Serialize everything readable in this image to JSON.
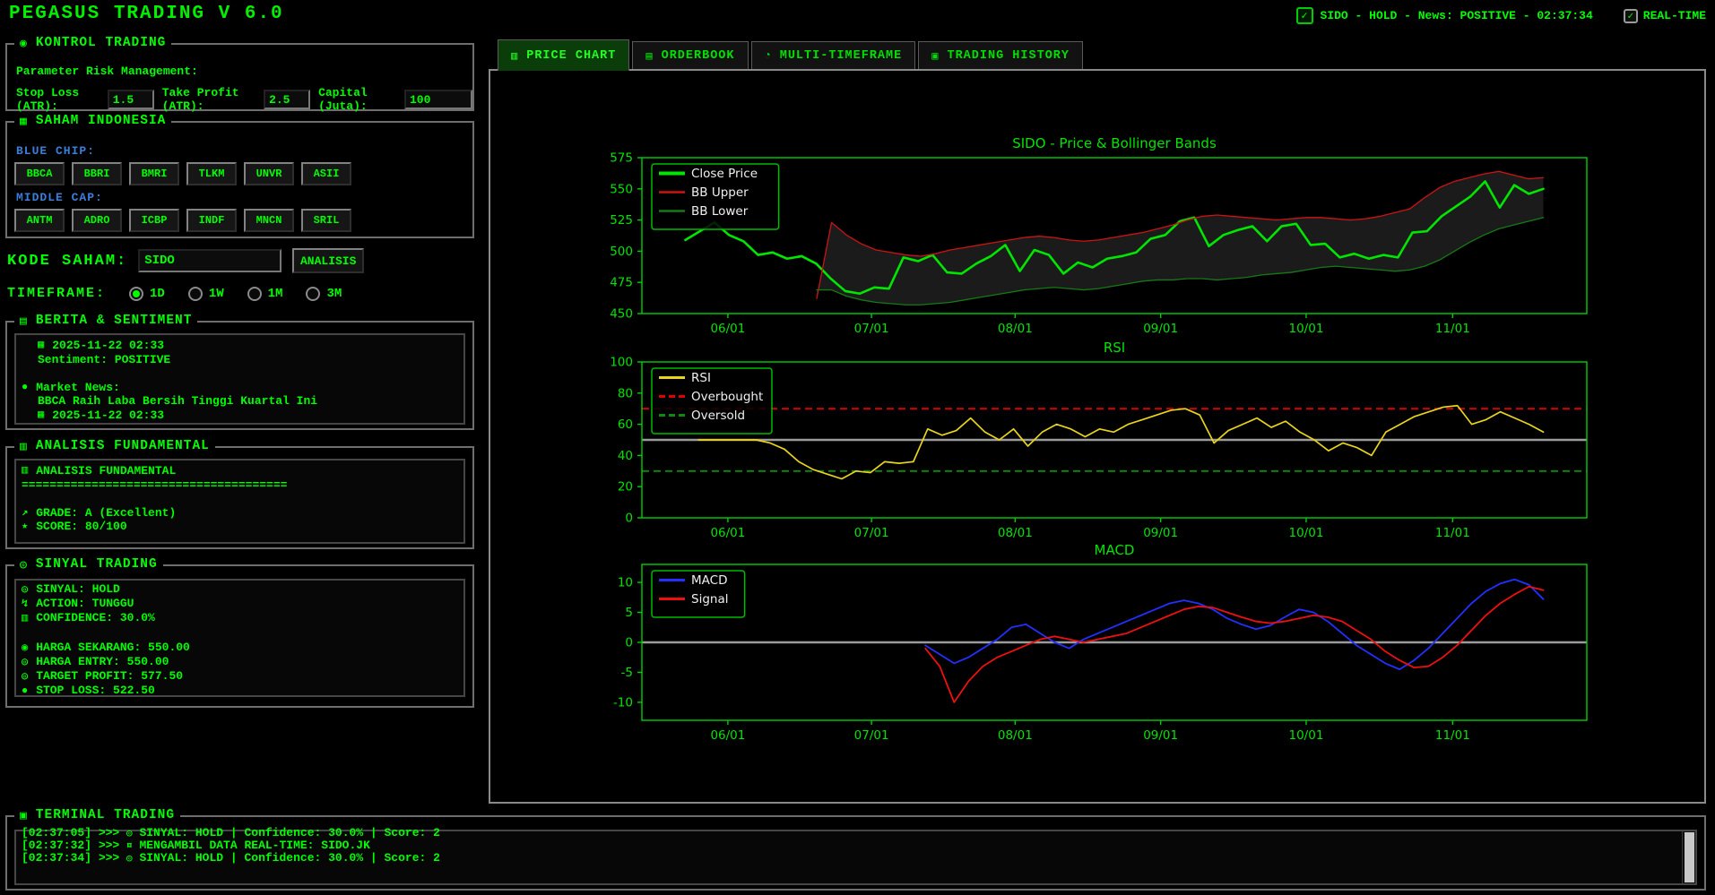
{
  "app": {
    "title": "PEGASUS TRADING V 6.0"
  },
  "statusbar": {
    "status": "SIDO - HOLD - News: POSITIVE - 02:37:34",
    "status_check": "checked",
    "realtime_label": "REAL-TIME",
    "realtime_checked": true
  },
  "colors": {
    "background": "#000000",
    "primary_green": "#00ff00",
    "label_blue": "#3b7dd8",
    "rsi_yellow": "#e8d41c",
    "macd_blue": "#2330ff",
    "signal_red": "#ee1010",
    "bb_red": "#cc1414",
    "bb_green": "#157a15",
    "band_gray": "#1b1b1b"
  },
  "sidebar": {
    "kontrol": {
      "title": "KONTROL TRADING",
      "subtitle": "Parameter Risk Management:",
      "fields": [
        {
          "label": "Stop Loss (ATR):",
          "value": "1.5"
        },
        {
          "label": "Take Profit (ATR):",
          "value": "2.5"
        },
        {
          "label": "Capital (Juta):",
          "value": "100"
        }
      ]
    },
    "saham": {
      "title": "SAHAM INDONESIA",
      "groups": [
        {
          "label": "BLUE CHIP:",
          "tickers": [
            "BBCA",
            "BBRI",
            "BMRI",
            "TLKM",
            "UNVR",
            "ASII"
          ]
        },
        {
          "label": "MIDDLE CAP:",
          "tickers": [
            "ANTM",
            "ADRO",
            "ICBP",
            "INDF",
            "MNCN",
            "SRIL"
          ]
        }
      ]
    },
    "kode": {
      "label": "KODE SAHAM:",
      "value": "SIDO",
      "button": "ANALISIS"
    },
    "timeframe": {
      "label": "TIMEFRAME:",
      "options": [
        {
          "label": "1D",
          "selected": true
        },
        {
          "label": "1W",
          "selected": false
        },
        {
          "label": "1M",
          "selected": false
        },
        {
          "label": "3M",
          "selected": false
        }
      ]
    },
    "berita": {
      "title": "BERITA & SENTIMENT",
      "lines": [
        {
          "icon": "calendar",
          "indent": 1,
          "text": "2025-11-22 02:33"
        },
        {
          "icon": null,
          "indent": 1,
          "text": "Sentiment: POSITIVE"
        },
        {
          "icon": null,
          "indent": 0,
          "text": ""
        },
        {
          "icon": "globe",
          "indent": 0,
          "text": "Market News:"
        },
        {
          "icon": null,
          "indent": 1,
          "text": "BBCA Raih Laba Bersih Tinggi Kuartal Ini"
        },
        {
          "icon": "calendar",
          "indent": 1,
          "text": "2025-11-22 02:33"
        }
      ]
    },
    "fundamental": {
      "title": "ANALISIS FUNDAMENTAL",
      "lines": [
        {
          "icon": "chart",
          "indent": 0,
          "text": "ANALISIS FUNDAMENTAL"
        },
        {
          "icon": null,
          "indent": 0,
          "text": "======================================"
        },
        {
          "icon": null,
          "indent": 0,
          "text": ""
        },
        {
          "icon": "grade",
          "indent": 0,
          "text": "GRADE: A (Excellent)"
        },
        {
          "icon": "star",
          "indent": 0,
          "text": "SCORE: 80/100"
        }
      ]
    },
    "sinyal": {
      "title": "SINYAL TRADING",
      "lines": [
        {
          "icon": "target",
          "indent": 0,
          "text": "SINYAL: HOLD"
        },
        {
          "icon": "lightning",
          "indent": 0,
          "text": "ACTION: TUNGGU"
        },
        {
          "icon": "chart",
          "indent": 0,
          "text": "CONFIDENCE: 30.0%"
        },
        {
          "icon": null,
          "indent": 0,
          "text": ""
        },
        {
          "icon": "money",
          "indent": 0,
          "text": "HARGA SEKARANG: 550.00"
        },
        {
          "icon": "target",
          "indent": 0,
          "text": "HARGA ENTRY: 550.00"
        },
        {
          "icon": "target",
          "indent": 0,
          "text": "TARGET PROFIT: 577.50"
        },
        {
          "icon": "stop",
          "indent": 0,
          "text": "STOP LOSS: 522.50"
        }
      ]
    }
  },
  "tabs": [
    {
      "id": "price-chart",
      "icon": "pricechart",
      "label": "PRICE CHART",
      "active": true
    },
    {
      "id": "orderbook",
      "icon": "orderbook",
      "label": "ORDERBOOK",
      "active": false
    },
    {
      "id": "multi-timeframe",
      "icon": "timeframe",
      "label": "MULTI-TIMEFRAME",
      "active": false
    },
    {
      "id": "trading-history",
      "icon": "history",
      "label": "TRADING HISTORY",
      "active": false
    }
  ],
  "terminal": {
    "title": "TERMINAL TRADING",
    "prompt": ">>>",
    "lines": [
      {
        "time": "[02:37:05]",
        "icon": "target",
        "text": "SINYAL: HOLD | Confidence: 30.0% | Score: 2",
        "clipped": true
      },
      {
        "time": "[02:37:32]",
        "icon": "satellite",
        "text": "MENGAMBIL DATA REAL-TIME: SIDO.JK",
        "clipped": false
      },
      {
        "time": "[02:37:34]",
        "icon": "target",
        "text": "SINYAL: HOLD | Confidence: 30.0% | Score: 2",
        "clipped": false
      }
    ]
  },
  "chart_data": [
    {
      "type": "line",
      "title": "SIDO - Price & Bollinger Bands",
      "ylim": [
        450,
        575
      ],
      "yticks": [
        450,
        475,
        500,
        525,
        550,
        575
      ],
      "xticks": [
        {
          "pos": 0.091,
          "label": "06/01"
        },
        {
          "pos": 0.243,
          "label": "07/01"
        },
        {
          "pos": 0.395,
          "label": "08/01"
        },
        {
          "pos": 0.549,
          "label": "09/01"
        },
        {
          "pos": 0.703,
          "label": "10/01"
        },
        {
          "pos": 0.858,
          "label": "11/01"
        }
      ],
      "band": {
        "upper": "BB Upper",
        "lower": "BB Lower",
        "fill": "#1b1b1b"
      },
      "ref_lines": [],
      "series": [
        {
          "name": "Close Price",
          "color": "#00e600",
          "width": 2.6,
          "dash": false,
          "x0": 0.046,
          "x1": 0.954,
          "values": [
            509,
            516,
            523,
            513,
            508,
            497,
            499,
            494,
            496,
            490,
            478,
            468,
            466,
            471,
            470,
            495,
            492,
            497,
            483,
            482,
            490,
            496,
            505,
            484,
            501,
            497,
            482,
            491,
            487,
            494,
            496,
            499,
            510,
            513,
            524,
            527,
            504,
            513,
            517,
            520,
            508,
            520,
            522,
            505,
            506,
            495,
            498,
            494,
            497,
            495,
            515,
            516,
            528,
            536,
            544,
            556,
            535,
            553,
            546,
            550
          ]
        },
        {
          "name": "BB Upper",
          "color": "#cc1414",
          "width": 1.3,
          "dash": false,
          "x0": 0.185,
          "x1": 0.954,
          "values": [
            462,
            523,
            513,
            506,
            501,
            499,
            497,
            496,
            498,
            501,
            503,
            505,
            507,
            509,
            511,
            512,
            511,
            509,
            508,
            509,
            511,
            513,
            515,
            518,
            521,
            525,
            528,
            529,
            528,
            527,
            526,
            525,
            526,
            527,
            527,
            526,
            525,
            526,
            528,
            531,
            534,
            543,
            551,
            556,
            559,
            562,
            564,
            561,
            558,
            559
          ]
        },
        {
          "name": "BB Lower",
          "color": "#157a15",
          "width": 1.3,
          "dash": false,
          "x0": 0.185,
          "x1": 0.954,
          "values": [
            469,
            469,
            464,
            461,
            459,
            458,
            457,
            457,
            458,
            459,
            461,
            463,
            465,
            467,
            469,
            470,
            471,
            470,
            469,
            470,
            472,
            474,
            476,
            477,
            477,
            478,
            478,
            477,
            478,
            479,
            481,
            482,
            483,
            485,
            487,
            488,
            487,
            486,
            485,
            484,
            485,
            488,
            493,
            500,
            507,
            513,
            518,
            521,
            524,
            527
          ]
        }
      ],
      "legend": [
        {
          "label": "Close Price",
          "color": "#00e600",
          "width": 3,
          "dash": false
        },
        {
          "label": "BB Upper",
          "color": "#cc1414",
          "width": 1.5,
          "dash": false
        },
        {
          "label": "BB Lower",
          "color": "#157a15",
          "width": 1.5,
          "dash": false
        }
      ]
    },
    {
      "type": "line",
      "title": "RSI",
      "ylim": [
        0,
        100
      ],
      "yticks": [
        0,
        20,
        40,
        60,
        80,
        100
      ],
      "xticks": [
        {
          "pos": 0.091,
          "label": "06/01"
        },
        {
          "pos": 0.243,
          "label": "07/01"
        },
        {
          "pos": 0.395,
          "label": "08/01"
        },
        {
          "pos": 0.549,
          "label": "09/01"
        },
        {
          "pos": 0.703,
          "label": "10/01"
        },
        {
          "pos": 0.858,
          "label": "11/01"
        }
      ],
      "ref_lines": [
        {
          "y": 70,
          "color": "#e00000",
          "width": 1.8,
          "dash": true,
          "name": "Overbought"
        },
        {
          "y": 50,
          "color": "#9b9b9b",
          "width": 2.4,
          "dash": false,
          "name": "Midline"
        },
        {
          "y": 30,
          "color": "#0e8a0e",
          "width": 1.8,
          "dash": true,
          "name": "Oversold"
        }
      ],
      "series": [
        {
          "name": "RSI",
          "color": "#e8d41c",
          "width": 1.7,
          "dash": false,
          "x0": 0.06,
          "x1": 0.954,
          "values": [
            50,
            50,
            50,
            50,
            50,
            48,
            44,
            36,
            31,
            28,
            25,
            30,
            29,
            36,
            35,
            36,
            57,
            53,
            56,
            64,
            55,
            50,
            57,
            46,
            55,
            60,
            57,
            52,
            57,
            55,
            60,
            63,
            66,
            69,
            70,
            66,
            48,
            56,
            60,
            64,
            58,
            62,
            55,
            50,
            43,
            48,
            45,
            40,
            55,
            60,
            65,
            68,
            71,
            72,
            60,
            63,
            68,
            64,
            60,
            55
          ]
        }
      ],
      "legend": [
        {
          "label": "RSI",
          "color": "#e8d41c",
          "width": 2,
          "dash": false
        },
        {
          "label": "Overbought",
          "color": "#e00000",
          "width": 2,
          "dash": true
        },
        {
          "label": "Oversold",
          "color": "#0e8a0e",
          "width": 2,
          "dash": true
        }
      ]
    },
    {
      "type": "line",
      "title": "MACD",
      "ylim": [
        -13,
        13
      ],
      "yticks": [
        -10,
        -5,
        0,
        5,
        10
      ],
      "xticks": [
        {
          "pos": 0.091,
          "label": "06/01"
        },
        {
          "pos": 0.243,
          "label": "07/01"
        },
        {
          "pos": 0.395,
          "label": "08/01"
        },
        {
          "pos": 0.549,
          "label": "09/01"
        },
        {
          "pos": 0.703,
          "label": "10/01"
        },
        {
          "pos": 0.858,
          "label": "11/01"
        }
      ],
      "ref_lines": [
        {
          "y": 0,
          "color": "#9b9b9b",
          "width": 2.4,
          "dash": false,
          "name": "Zero"
        }
      ],
      "series": [
        {
          "name": "MACD",
          "color": "#2330ff",
          "width": 1.8,
          "dash": false,
          "x0": 0.3,
          "x1": 0.954,
          "values": [
            -0.5,
            -2,
            -3.5,
            -2.5,
            -1,
            0.5,
            2.5,
            3,
            1.5,
            0,
            -1,
            0.5,
            1.5,
            2.5,
            3.5,
            4.5,
            5.5,
            6.5,
            7,
            6.5,
            5.5,
            4,
            3,
            2.2,
            2.8,
            4.2,
            5.5,
            5,
            3.5,
            1.5,
            -0.5,
            -2,
            -3.5,
            -4.5,
            -3,
            -1,
            1.5,
            4,
            6.5,
            8.5,
            9.8,
            10.5,
            9.6,
            7.2
          ]
        },
        {
          "name": "Signal",
          "color": "#ee1010",
          "width": 1.8,
          "dash": false,
          "x0": 0.3,
          "x1": 0.954,
          "values": [
            -1,
            -4,
            -10,
            -6.5,
            -4,
            -2.5,
            -1.5,
            -0.5,
            0.5,
            1,
            0.5,
            0,
            0.5,
            1,
            1.5,
            2.5,
            3.5,
            4.5,
            5.5,
            6,
            5.8,
            5,
            4.2,
            3.5,
            3.2,
            3.5,
            4,
            4.5,
            4.2,
            3.5,
            2,
            0.5,
            -1.5,
            -3,
            -4.2,
            -4,
            -2.5,
            -0.5,
            2,
            4.5,
            6.5,
            8,
            9.3,
            8.7
          ]
        }
      ],
      "legend": [
        {
          "label": "MACD",
          "color": "#2330ff",
          "width": 2,
          "dash": false
        },
        {
          "label": "Signal",
          "color": "#ee1010",
          "width": 2,
          "dash": false
        }
      ]
    }
  ]
}
